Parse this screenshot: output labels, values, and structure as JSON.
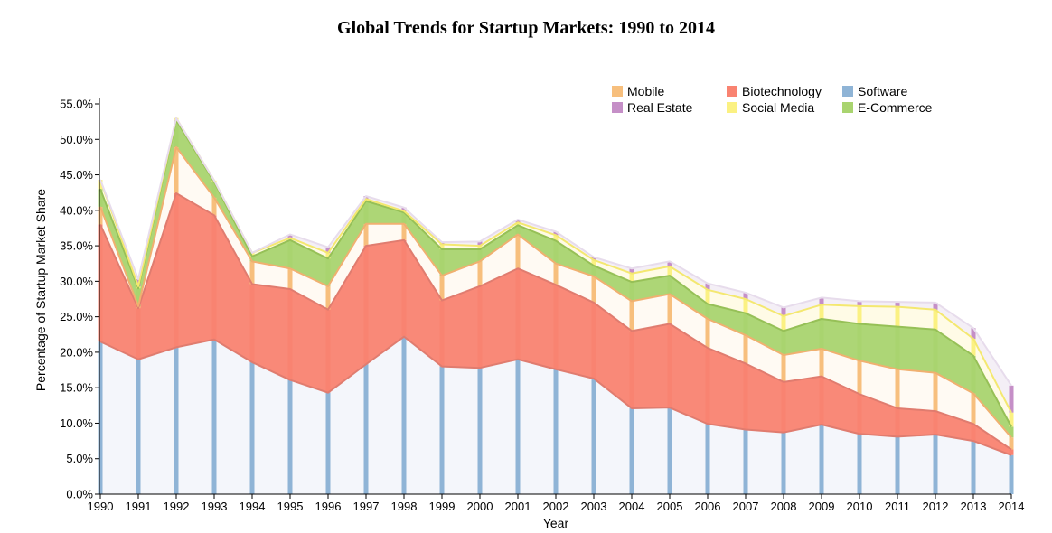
{
  "chart_data": {
    "type": "area",
    "stacked": true,
    "title": "Global Trends for Startup Markets: 1990 to 2014",
    "xlabel": "Year",
    "ylabel": "Percentage of Startup Market Share",
    "x": [
      1990,
      1991,
      1992,
      1993,
      1994,
      1995,
      1996,
      1997,
      1998,
      1999,
      2000,
      2001,
      2002,
      2003,
      2004,
      2005,
      2006,
      2007,
      2008,
      2009,
      2010,
      2011,
      2012,
      2013,
      2014
    ],
    "x_tick_labels": [
      "1990",
      "1991",
      "1992",
      "1993",
      "1994",
      "1995",
      "1996",
      "1997",
      "1998",
      "1999",
      "2000",
      "2001",
      "2002",
      "2003",
      "2004",
      "2005",
      "2006",
      "2007",
      "2008",
      "2009",
      "2010",
      "2011",
      "2012",
      "2013",
      "2014"
    ],
    "ylim": [
      0,
      55
    ],
    "y_ticks": [
      0,
      5,
      10,
      15,
      20,
      25,
      30,
      35,
      40,
      45,
      50,
      55
    ],
    "y_tick_labels": [
      "0.0%",
      "5.0%",
      "10.0%",
      "15.0%",
      "20.0%",
      "25.0%",
      "30.0%",
      "35.0%",
      "40.0%",
      "45.0%",
      "50.0%",
      "55.0%"
    ],
    "legend_position": "top-right",
    "legend_order": [
      "Mobile",
      "Biotechnology",
      "Software",
      "Real Estate",
      "Social Media",
      "E-Commerce"
    ],
    "series": [
      {
        "name": "Software",
        "color": "#8fb4d6",
        "fill": "#f3f6fb",
        "line": "#e07c6f",
        "values": [
          21.5,
          19.0,
          20.7,
          21.8,
          18.6,
          16.1,
          14.3,
          18.3,
          22.2,
          18.0,
          17.8,
          19.0,
          17.6,
          16.3,
          12.1,
          12.2,
          9.9,
          9.1,
          8.7,
          9.8,
          8.5,
          8.1,
          8.4,
          7.5,
          5.5
        ]
      },
      {
        "name": "Biotechnology",
        "color": "#f98371",
        "fill": "#f98371",
        "line": "#e07c6f",
        "values": [
          16.5,
          7.2,
          21.7,
          17.5,
          11.0,
          12.8,
          11.7,
          16.7,
          13.6,
          9.3,
          11.5,
          12.8,
          11.9,
          10.7,
          10.9,
          11.8,
          10.7,
          9.3,
          7.1,
          6.8,
          5.6,
          4.0,
          3.3,
          2.4,
          0.8
        ]
      },
      {
        "name": "Mobile",
        "color": "#f7bf7d",
        "fill": "#fffaf2",
        "line": "#f0b070",
        "values": [
          2.5,
          0.3,
          6.5,
          2.5,
          3.2,
          2.9,
          3.3,
          3.1,
          2.3,
          3.5,
          3.5,
          4.8,
          3.0,
          3.7,
          4.2,
          4.2,
          4.1,
          4.0,
          3.8,
          3.9,
          4.7,
          5.5,
          5.4,
          4.3,
          1.7
        ]
      },
      {
        "name": "E-Commerce",
        "color": "#a9d46f",
        "fill": "#a9d46f",
        "line": "#96c057",
        "values": [
          2.5,
          2.5,
          3.8,
          2.2,
          0.7,
          4.0,
          3.9,
          3.2,
          1.6,
          3.7,
          1.7,
          1.3,
          3.2,
          1.5,
          2.7,
          2.6,
          2.1,
          3.1,
          3.4,
          4.2,
          5.2,
          6.0,
          6.1,
          5.3,
          1.5
        ]
      },
      {
        "name": "Social Media",
        "color": "#fbf182",
        "fill": "#fffbe5",
        "line": "#f4e870",
        "values": [
          1.3,
          0.3,
          0.3,
          0.2,
          0.5,
          0.3,
          0.8,
          0.3,
          0.2,
          0.7,
          0.5,
          0.4,
          0.8,
          0.8,
          1.2,
          1.3,
          2.0,
          2.0,
          2.1,
          2.0,
          2.5,
          2.8,
          2.8,
          2.4,
          2.0
        ]
      },
      {
        "name": "Real Estate",
        "color": "#c58fc7",
        "fill": "#f3eef6",
        "line": "#e7dcec",
        "values": [
          0.0,
          1.0,
          0.0,
          0.0,
          0.0,
          0.5,
          0.8,
          0.4,
          0.5,
          0.3,
          0.6,
          0.4,
          0.5,
          0.4,
          0.7,
          0.7,
          0.9,
          0.9,
          1.2,
          1.0,
          0.7,
          0.7,
          1.0,
          1.5,
          3.8
        ]
      }
    ]
  }
}
